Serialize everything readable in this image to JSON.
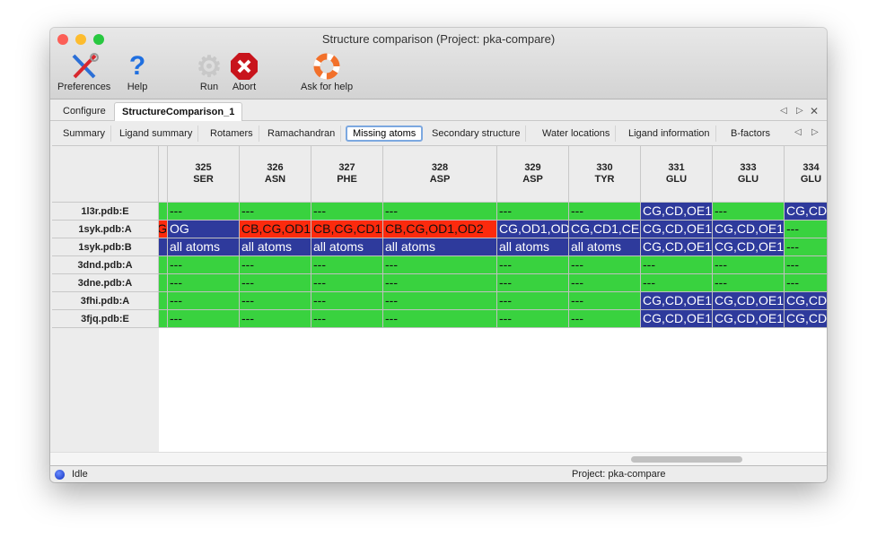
{
  "window": {
    "title": "Structure comparison (Project: pka-compare)"
  },
  "toolbar": [
    {
      "label": "Preferences",
      "icon": "preferences-tools-icon"
    },
    {
      "label": "Help",
      "icon": "help-question-icon"
    },
    {
      "label": "Run",
      "icon": "run-gear-icon"
    },
    {
      "label": "Abort",
      "icon": "abort-stop-icon"
    },
    {
      "label": "Ask for help",
      "icon": "lifebuoy-icon"
    }
  ],
  "tabs": [
    {
      "label": "Configure",
      "active": false
    },
    {
      "label": "StructureComparison_1",
      "active": true
    }
  ],
  "subtabs": [
    {
      "label": "Summary"
    },
    {
      "label": "Ligand summary"
    },
    {
      "label": "Rotamers"
    },
    {
      "label": "Ramachandran"
    },
    {
      "label": "Missing atoms",
      "active": true
    },
    {
      "label": "Secondary structure"
    },
    {
      "label": "Water locations"
    },
    {
      "label": "Ligand information"
    },
    {
      "label": "B-factors"
    }
  ],
  "colors": {
    "green": "#39d23f",
    "blue": "#2e3a9c",
    "red": "#fc2a0d"
  },
  "table": {
    "columns": [
      {
        "num": "",
        "res": ""
      },
      {
        "num": "325",
        "res": "SER"
      },
      {
        "num": "326",
        "res": "ASN"
      },
      {
        "num": "327",
        "res": "PHE"
      },
      {
        "num": "328",
        "res": "ASP"
      },
      {
        "num": "329",
        "res": "ASP"
      },
      {
        "num": "330",
        "res": "TYR"
      },
      {
        "num": "331",
        "res": "GLU"
      },
      {
        "num": "333",
        "res": "GLU"
      },
      {
        "num": "334",
        "res": "GLU"
      }
    ],
    "rows": [
      {
        "label": "1l3r.pdb:E",
        "cells": [
          [
            "",
            "green"
          ],
          [
            "---",
            "green"
          ],
          [
            "---",
            "green"
          ],
          [
            "---",
            "green"
          ],
          [
            "---",
            "green"
          ],
          [
            "---",
            "green"
          ],
          [
            "---",
            "green"
          ],
          [
            "CG,CD,OE1",
            "blue"
          ],
          [
            "---",
            "green"
          ],
          [
            "CG,CD",
            "blue"
          ]
        ]
      },
      {
        "label": "1syk.pdb:A",
        "cells": [
          [
            "G",
            "red"
          ],
          [
            "OG",
            "blue"
          ],
          [
            "CB,CG,OD1",
            "red"
          ],
          [
            "CB,CG,CD1",
            "red"
          ],
          [
            "CB,CG,OD1,OD2",
            "red"
          ],
          [
            "CG,OD1,OD",
            "blue"
          ],
          [
            "CG,CD1,CE",
            "blue"
          ],
          [
            "CG,CD,OE1",
            "blue"
          ],
          [
            "CG,CD,OE1",
            "blue"
          ],
          [
            "---",
            "green"
          ]
        ]
      },
      {
        "label": "1syk.pdb:B",
        "cells": [
          [
            "",
            "blue"
          ],
          [
            "all atoms",
            "blue"
          ],
          [
            "all atoms",
            "blue"
          ],
          [
            "all atoms",
            "blue"
          ],
          [
            "all atoms",
            "blue"
          ],
          [
            "all atoms",
            "blue"
          ],
          [
            "all atoms",
            "blue"
          ],
          [
            "CG,CD,OE1",
            "blue"
          ],
          [
            "CG,CD,OE1",
            "blue"
          ],
          [
            "---",
            "green"
          ]
        ]
      },
      {
        "label": "3dnd.pdb:A",
        "cells": [
          [
            "",
            "green"
          ],
          [
            "---",
            "green"
          ],
          [
            "---",
            "green"
          ],
          [
            "---",
            "green"
          ],
          [
            "---",
            "green"
          ],
          [
            "---",
            "green"
          ],
          [
            "---",
            "green"
          ],
          [
            "---",
            "green"
          ],
          [
            "---",
            "green"
          ],
          [
            "---",
            "green"
          ]
        ]
      },
      {
        "label": "3dne.pdb:A",
        "cells": [
          [
            "",
            "green"
          ],
          [
            "---",
            "green"
          ],
          [
            "---",
            "green"
          ],
          [
            "---",
            "green"
          ],
          [
            "---",
            "green"
          ],
          [
            "---",
            "green"
          ],
          [
            "---",
            "green"
          ],
          [
            "---",
            "green"
          ],
          [
            "---",
            "green"
          ],
          [
            "---",
            "green"
          ]
        ]
      },
      {
        "label": "3fhi.pdb:A",
        "cells": [
          [
            "",
            "green"
          ],
          [
            "---",
            "green"
          ],
          [
            "---",
            "green"
          ],
          [
            "---",
            "green"
          ],
          [
            "---",
            "green"
          ],
          [
            "---",
            "green"
          ],
          [
            "---",
            "green"
          ],
          [
            "CG,CD,OE1",
            "blue"
          ],
          [
            "CG,CD,OE1",
            "blue"
          ],
          [
            "CG,CD",
            "blue"
          ]
        ]
      },
      {
        "label": "3fjq.pdb:E",
        "cells": [
          [
            "",
            "green"
          ],
          [
            "---",
            "green"
          ],
          [
            "---",
            "green"
          ],
          [
            "---",
            "green"
          ],
          [
            "---",
            "green"
          ],
          [
            "---",
            "green"
          ],
          [
            "---",
            "green"
          ],
          [
            "CG,CD,OE1",
            "blue"
          ],
          [
            "CG,CD,OE1",
            "blue"
          ],
          [
            "CG,CD",
            "blue"
          ]
        ]
      }
    ]
  },
  "status": {
    "state": "Idle",
    "project": "Project: pka-compare"
  }
}
